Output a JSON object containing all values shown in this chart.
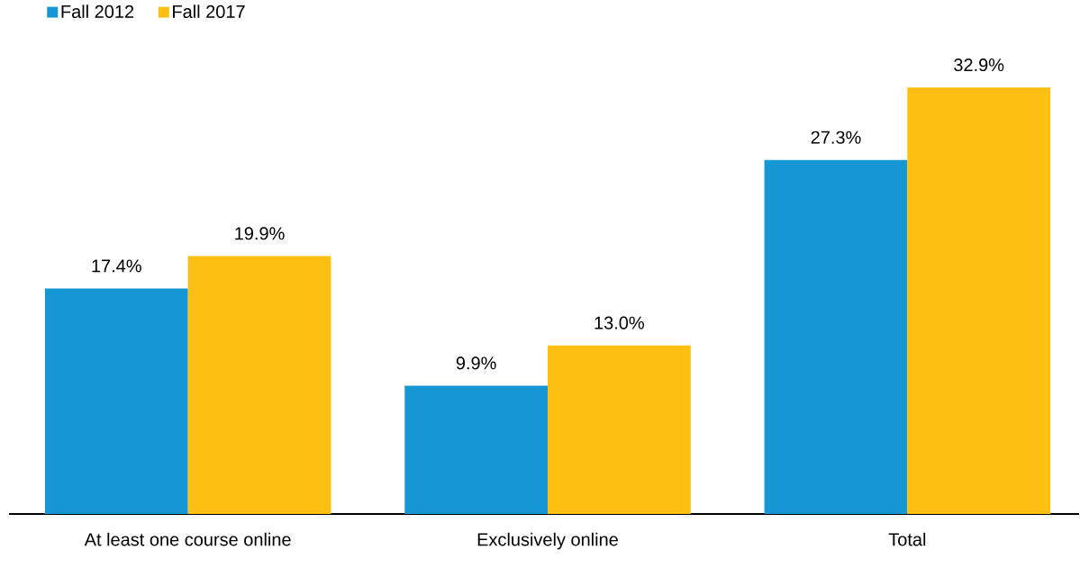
{
  "chart_data": {
    "type": "bar",
    "categories": [
      "At least one course online",
      "Exclusively online",
      "Total"
    ],
    "series": [
      {
        "name": "Fall 2012",
        "color": "#1696d2",
        "values": [
          17.4,
          9.9,
          27.3
        ],
        "value_labels": [
          "17.4%",
          "9.9%",
          "27.3%"
        ]
      },
      {
        "name": "Fall 2017",
        "color": "#fdbf11",
        "values": [
          19.9,
          13.0,
          32.9
        ],
        "value_labels": [
          "19.9%",
          "13.0%",
          "32.9%"
        ]
      }
    ],
    "legend": "top left"
  }
}
